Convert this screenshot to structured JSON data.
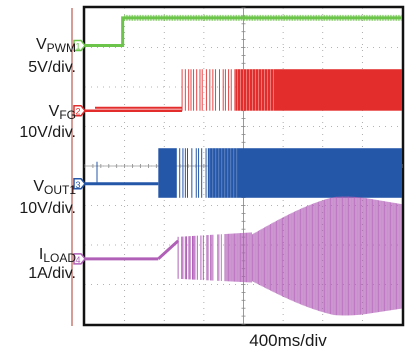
{
  "chart_data": {
    "type": "line",
    "title": "",
    "xlabel": "400ms/div",
    "ylabel": "",
    "grid": true,
    "x_divisions": 8,
    "y_divisions": 8,
    "channels": [
      {
        "id": "1",
        "sub": "PWM",
        "name_prefix": "V",
        "scale": "5V/div.",
        "color": "#6cc44a",
        "baseline_div": 0.95,
        "step_time_div": 0.95,
        "high_div": 0.25
      },
      {
        "id": "2",
        "sub": "FG",
        "name_prefix": "V",
        "scale": "10V/div.",
        "color": "#e32d2d",
        "baseline_div": 2.6,
        "high_div": 1.55,
        "start_div": 0.0,
        "switch_start_div": 2.45,
        "dense_start_div": 3.8
      },
      {
        "id": "3",
        "sub": "OUT1",
        "name_prefix": "V",
        "scale": "10V/div.",
        "color": "#2457a8",
        "baseline_div": 4.45,
        "high_div": 3.55,
        "switch_start_div": 1.85,
        "dense_start_div": 3.1
      },
      {
        "id": "4",
        "sub": "LOAD",
        "name_prefix": "I",
        "scale": "1A/div.",
        "color": "#b160b8",
        "baseline_div": 6.35,
        "ramp_start_div": 1.85,
        "ramp_end_div": 2.35,
        "peak_div": 4.6
      }
    ]
  }
}
